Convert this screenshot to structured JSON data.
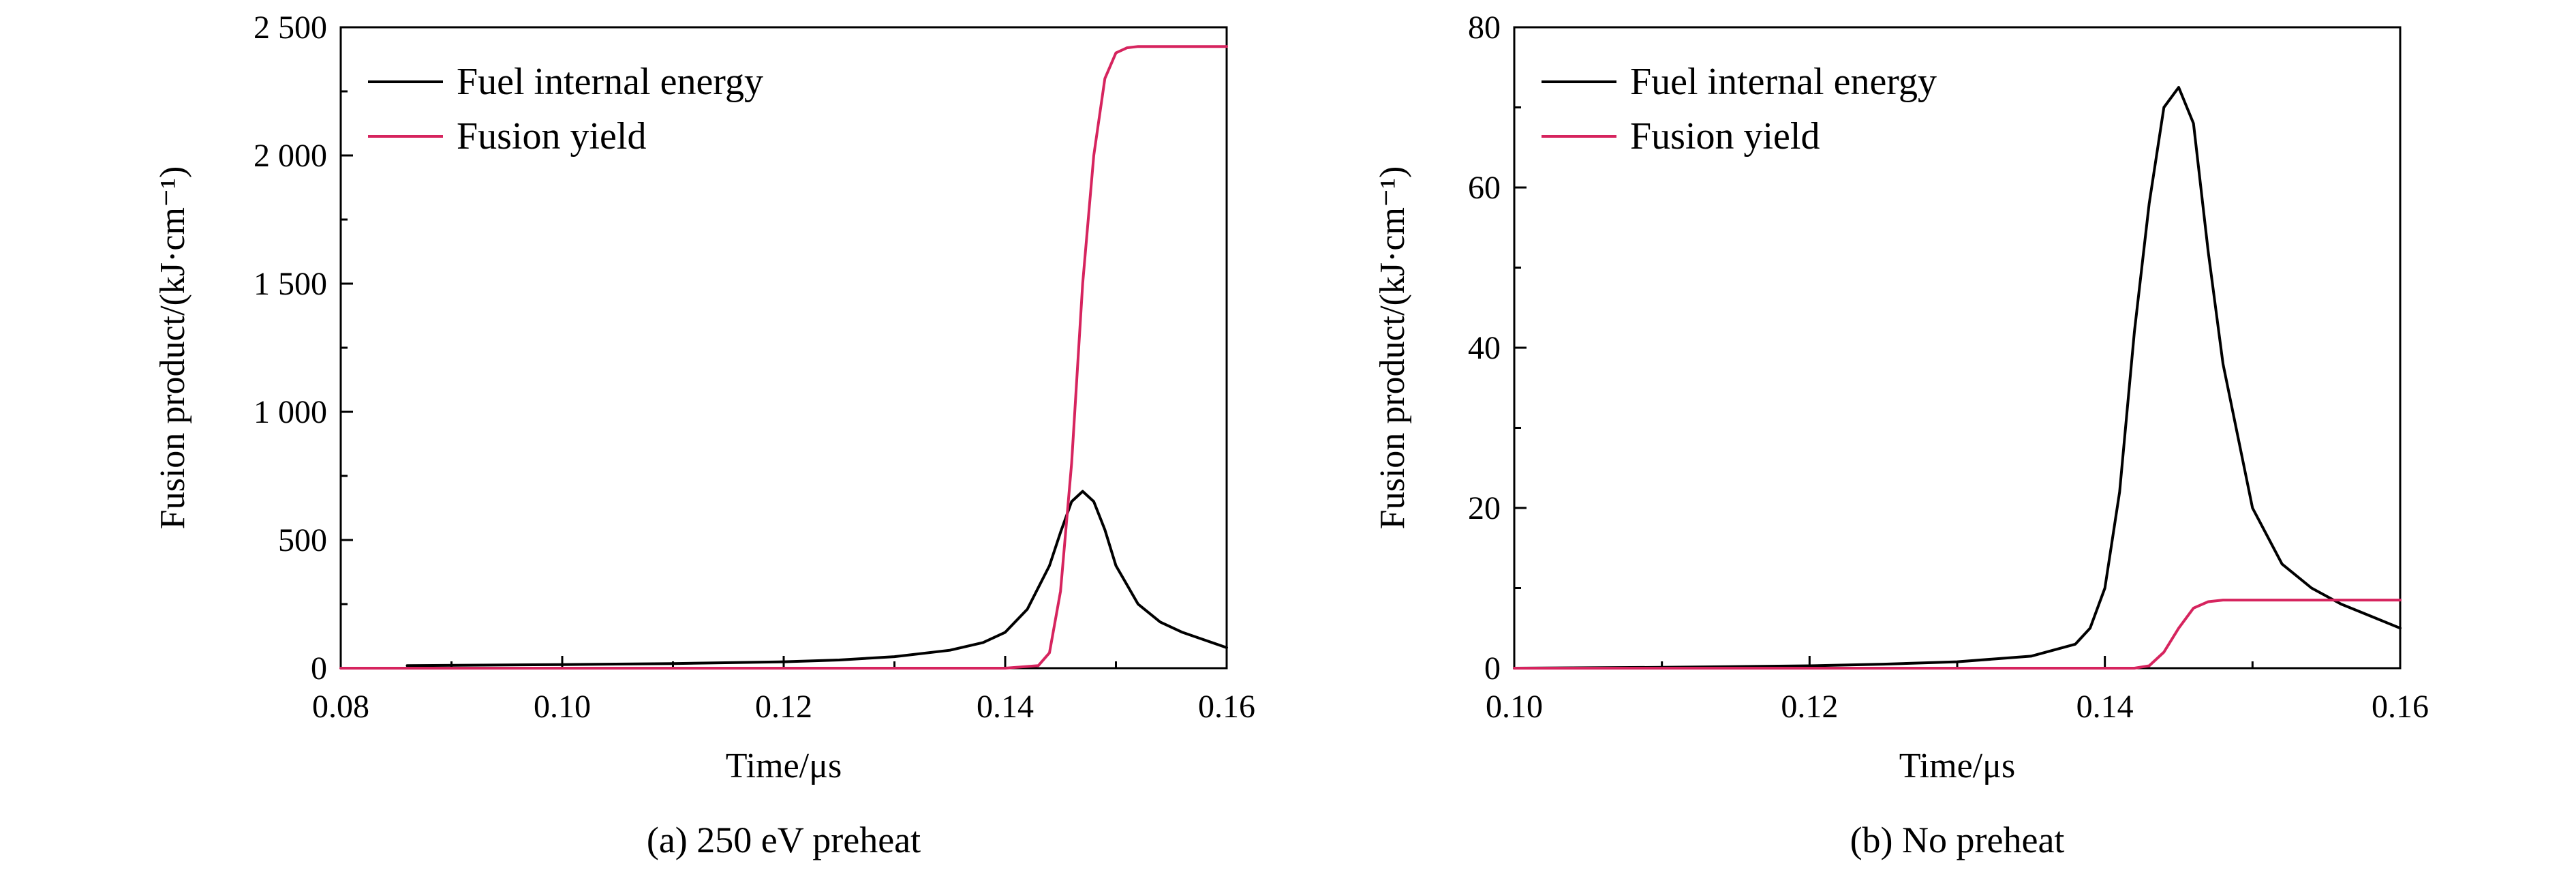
{
  "chart_data": [
    {
      "type": "line",
      "caption": "(a) 250 eV preheat",
      "xlabel": "Time/μs",
      "ylabel": "Fusion product/(kJ·cm⁻¹)",
      "xlim": [
        0.08,
        0.16
      ],
      "ylim": [
        0,
        2500
      ],
      "xticks": [
        0.08,
        0.1,
        0.12,
        0.14,
        0.16
      ],
      "xtick_labels": [
        "0.08",
        "0.10",
        "0.12",
        "0.14",
        "0.16"
      ],
      "yticks": [
        0,
        500,
        1000,
        1500,
        2000,
        2500
      ],
      "ytick_labels": [
        "0",
        "500",
        "1 000",
        "1 500",
        "2 000",
        "2 500"
      ],
      "legend_position": "top-left",
      "series": [
        {
          "name": "Fuel internal energy",
          "color": "#000000",
          "x": [
            0.086,
            0.1,
            0.11,
            0.12,
            0.125,
            0.13,
            0.135,
            0.138,
            0.14,
            0.142,
            0.144,
            0.145,
            0.146,
            0.147,
            0.148,
            0.149,
            0.15,
            0.152,
            0.154,
            0.156,
            0.158,
            0.16
          ],
          "y": [
            10,
            14,
            18,
            25,
            32,
            45,
            70,
            100,
            140,
            230,
            400,
            530,
            650,
            690,
            650,
            540,
            400,
            250,
            180,
            140,
            110,
            80
          ]
        },
        {
          "name": "Fusion yield",
          "color": "#d6245e",
          "x": [
            0.08,
            0.14,
            0.143,
            0.144,
            0.145,
            0.146,
            0.147,
            0.148,
            0.149,
            0.15,
            0.151,
            0.152,
            0.155,
            0.16
          ],
          "y": [
            0,
            0,
            10,
            60,
            300,
            800,
            1500,
            2000,
            2300,
            2400,
            2420,
            2425,
            2425,
            2425
          ]
        }
      ]
    },
    {
      "type": "line",
      "caption": "(b) No preheat",
      "xlabel": "Time/μs",
      "ylabel": "Fusion product/(kJ·cm⁻¹)",
      "xlim": [
        0.1,
        0.16
      ],
      "ylim": [
        0,
        80
      ],
      "xticks": [
        0.1,
        0.12,
        0.14,
        0.16
      ],
      "xtick_labels": [
        "0.10",
        "0.12",
        "0.14",
        "0.16"
      ],
      "yticks": [
        0,
        20,
        40,
        60,
        80
      ],
      "ytick_labels": [
        "0",
        "20",
        "40",
        "60",
        "80"
      ],
      "legend_position": "top-left",
      "series": [
        {
          "name": "Fuel internal energy",
          "color": "#000000",
          "x": [
            0.1,
            0.11,
            0.12,
            0.125,
            0.13,
            0.135,
            0.138,
            0.139,
            0.14,
            0.141,
            0.142,
            0.143,
            0.144,
            0.145,
            0.146,
            0.147,
            0.148,
            0.15,
            0.152,
            0.154,
            0.156,
            0.158,
            0.16
          ],
          "y": [
            0,
            0.1,
            0.3,
            0.5,
            0.8,
            1.5,
            3,
            5,
            10,
            22,
            42,
            58,
            70,
            72.5,
            68,
            52,
            38,
            20,
            13,
            10,
            8,
            6.5,
            5
          ]
        },
        {
          "name": "Fusion yield",
          "color": "#d6245e",
          "x": [
            0.1,
            0.142,
            0.143,
            0.144,
            0.145,
            0.146,
            0.147,
            0.148,
            0.15,
            0.16
          ],
          "y": [
            0,
            0,
            0.3,
            2,
            5,
            7.5,
            8.3,
            8.5,
            8.5,
            8.5
          ]
        }
      ]
    }
  ]
}
